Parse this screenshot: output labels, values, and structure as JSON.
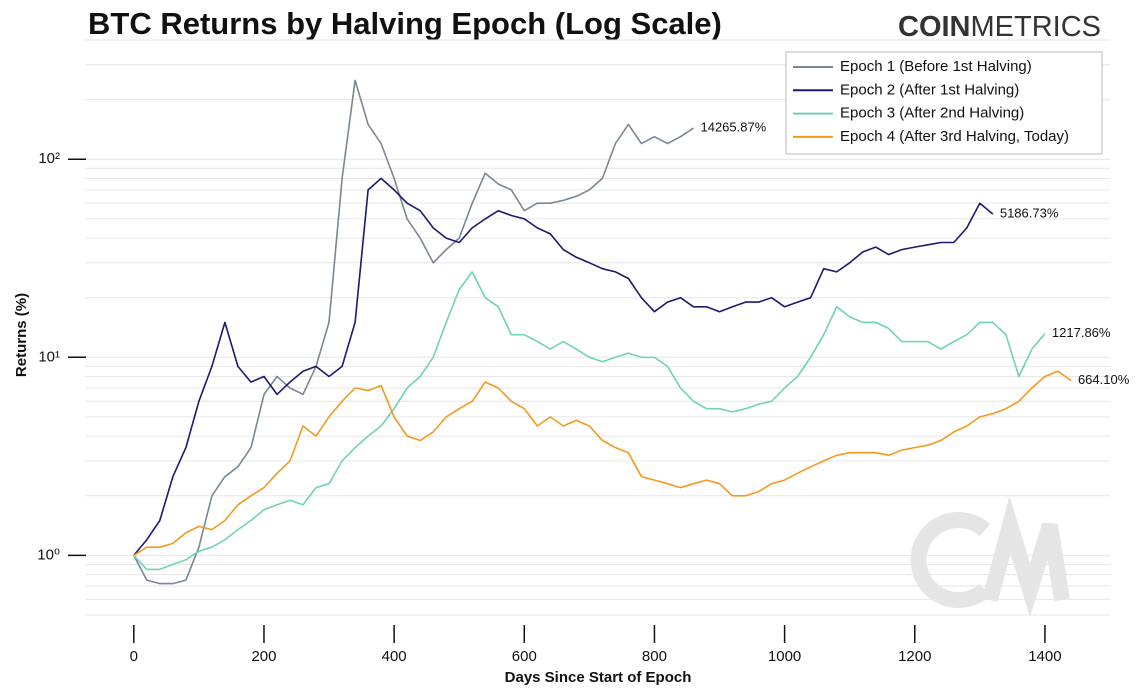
{
  "chart_data": {
    "type": "line",
    "title": "BTC Returns by Halving Epoch (Log Scale)",
    "brand_bold": "COIN",
    "brand_light": "METRICS",
    "xlabel": "Days Since Start of Epoch",
    "ylabel": "Returns (%)",
    "log_y": true,
    "grid": true,
    "legend": "upper right",
    "xlim": [
      -75,
      1500
    ],
    "ylim": [
      0.5,
      400
    ],
    "xticks": [
      0,
      200,
      400,
      600,
      800,
      1000,
      1200,
      1400
    ],
    "yticks": [
      {
        "value": 1,
        "label": "10⁰"
      },
      {
        "value": 10,
        "label": "10¹"
      },
      {
        "value": 100,
        "label": "10²"
      }
    ],
    "x": [
      0,
      20,
      40,
      60,
      80,
      100,
      120,
      140,
      160,
      180,
      200,
      220,
      240,
      260,
      280,
      300,
      320,
      340,
      360,
      380,
      400,
      420,
      440,
      460,
      480,
      500,
      520,
      540,
      560,
      580,
      600,
      620,
      640,
      660,
      680,
      700,
      720,
      740,
      760,
      780,
      800,
      820,
      840,
      860,
      880,
      900,
      920,
      940,
      960,
      980,
      1000,
      1020,
      1040,
      1060,
      1080,
      1100,
      1120,
      1140,
      1160,
      1180,
      1200,
      1220,
      1240,
      1260,
      1280,
      1300,
      1320,
      1340,
      1360,
      1380,
      1400,
      1420,
      1440
    ],
    "series": [
      {
        "name": "Epoch 1 (Before 1st Halving)",
        "color": "#7a8795",
        "end_label": "14265.87%",
        "values": [
          1.0,
          0.75,
          0.72,
          0.72,
          0.75,
          1.1,
          2.0,
          2.5,
          2.8,
          3.5,
          6.5,
          8,
          7,
          6.5,
          9,
          15,
          80,
          250,
          150,
          120,
          80,
          50,
          40,
          30,
          35,
          40,
          60,
          85,
          75,
          70,
          55,
          60,
          60,
          62,
          65,
          70,
          80,
          120,
          150,
          120,
          130,
          120,
          130,
          143.6587,
          null,
          null,
          null,
          null,
          null,
          null,
          null,
          null,
          null,
          null,
          null,
          null,
          null,
          null,
          null,
          null,
          null,
          null,
          null,
          null,
          null,
          null,
          null,
          null,
          null,
          null,
          null,
          null,
          null
        ]
      },
      {
        "name": "Epoch 2 (After 1st Halving)",
        "color": "#1a1a6e",
        "end_label": "5186.73%",
        "values": [
          1.0,
          1.2,
          1.5,
          2.5,
          3.5,
          6,
          9,
          15,
          9,
          7.5,
          8,
          6.5,
          7.5,
          8.5,
          9,
          8,
          9,
          15,
          70,
          80,
          70,
          60,
          55,
          45,
          40,
          38,
          45,
          50,
          55,
          52,
          50,
          45,
          42,
          35,
          32,
          30,
          28,
          27,
          25,
          20,
          17,
          19,
          20,
          18,
          18,
          17,
          18,
          19,
          19,
          20,
          18,
          19,
          20,
          28,
          27,
          30,
          34,
          36,
          33,
          35,
          36,
          37,
          38,
          38,
          45,
          60,
          52.8673,
          null,
          null,
          null,
          null,
          null,
          null
        ]
      },
      {
        "name": "Epoch 3 (After 2nd Halving)",
        "color": "#6fd4b0",
        "end_label": "1217.86%",
        "values": [
          1.0,
          0.85,
          0.85,
          0.9,
          0.95,
          1.05,
          1.1,
          1.2,
          1.35,
          1.5,
          1.7,
          1.8,
          1.9,
          1.8,
          2.2,
          2.3,
          3,
          3.5,
          4,
          4.5,
          5.5,
          7,
          8,
          10,
          15,
          22,
          27,
          20,
          18,
          13,
          13,
          12,
          11,
          12,
          11,
          10,
          9.5,
          10,
          10.5,
          10,
          10,
          9,
          7,
          6,
          5.5,
          5.5,
          5.3,
          5.5,
          5.8,
          6,
          7,
          8,
          10,
          13,
          18,
          16,
          15,
          15,
          14,
          12,
          12,
          12,
          11,
          12,
          13,
          15,
          15,
          13,
          8,
          11,
          13.1786,
          null,
          null
        ]
      },
      {
        "name": "Epoch 4 (After 3rd Halving, Today)",
        "color": "#f39a1e",
        "end_label": "664.10%",
        "values": [
          1.0,
          1.1,
          1.1,
          1.15,
          1.3,
          1.4,
          1.35,
          1.5,
          1.8,
          2.0,
          2.2,
          2.6,
          3.0,
          4.5,
          4.0,
          5.0,
          6.0,
          7.0,
          6.8,
          7.2,
          5.0,
          4.0,
          3.8,
          4.2,
          5.0,
          5.5,
          6.0,
          7.5,
          7.0,
          6.0,
          5.5,
          4.5,
          5.0,
          4.5,
          4.8,
          4.5,
          3.8,
          3.5,
          3.3,
          2.5,
          2.4,
          2.3,
          2.2,
          2.3,
          2.4,
          2.3,
          2.0,
          2.0,
          2.1,
          2.3,
          2.4,
          2.6,
          2.8,
          3.0,
          3.2,
          3.3,
          3.3,
          3.3,
          3.2,
          3.4,
          3.5,
          3.6,
          3.8,
          4.2,
          4.5,
          5.0,
          5.2,
          5.5,
          6.0,
          7.0,
          8.0,
          8.5,
          7.641
        ]
      }
    ]
  }
}
